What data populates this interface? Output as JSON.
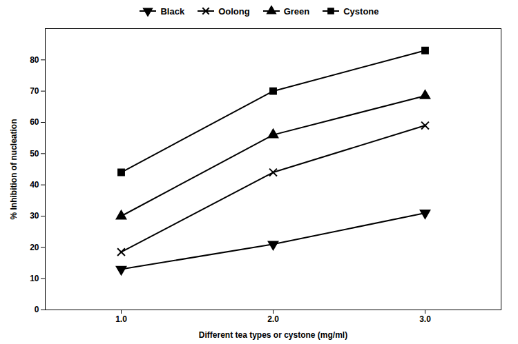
{
  "chart_data": {
    "type": "line",
    "x": [
      1,
      2,
      3
    ],
    "series": [
      {
        "name": "Black",
        "color": "black",
        "marker": "triangle-down",
        "values": [
          13,
          21,
          31
        ]
      },
      {
        "name": "Oolong",
        "color": "black",
        "marker": "x",
        "values": [
          18.5,
          44,
          59
        ]
      },
      {
        "name": "Green",
        "color": "black",
        "marker": "triangle-up",
        "values": [
          30,
          56,
          68.5
        ]
      },
      {
        "name": "Cystone",
        "color": "black",
        "marker": "square",
        "values": [
          44,
          70,
          83
        ]
      }
    ],
    "xlabel": "Different tea types or cystone (mg/ml)",
    "ylabel": "% Inhibition of nucleation",
    "xlim": [
      0.5,
      3.5
    ],
    "xticks": [
      1,
      2,
      3
    ],
    "ylim": [
      0,
      90
    ],
    "yticks": [
      0,
      10,
      20,
      30,
      40,
      50,
      60,
      70,
      80
    ],
    "grid": false,
    "legend": "top"
  }
}
